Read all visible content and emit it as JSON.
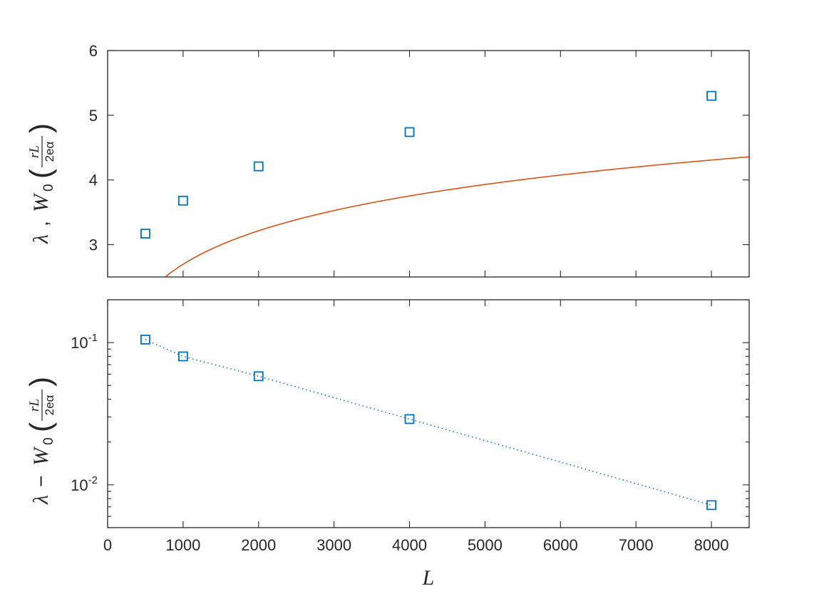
{
  "chart_data": [
    {
      "type": "line",
      "xlim": [
        0,
        8500
      ],
      "ylim": [
        2.5,
        6
      ],
      "y_scale": "linear",
      "grid": false,
      "xticks": [
        0,
        1000,
        2000,
        3000,
        4000,
        5000,
        6000,
        7000,
        8000
      ],
      "xtick_labels_shown": false,
      "yticks": [
        3,
        4,
        5,
        6
      ],
      "ytick_labels": [
        "3",
        "4",
        "5",
        "6"
      ],
      "ylabel": {
        "lambda": "λ",
        "sep": ",",
        "W": "W",
        "sub": "0",
        "num": "rL",
        "den": "2eα"
      },
      "markers": {
        "x": [
          500,
          1000,
          2000,
          4000,
          8000
        ],
        "y": [
          3.17,
          3.68,
          4.21,
          4.74,
          5.3
        ],
        "marker": "square",
        "color": "#0072BD"
      },
      "curve": {
        "function": "lambert_w0(r*L/(2*e*alpha))",
        "r_over_2e_alpha": 0.04,
        "color": "#D95319",
        "style": "solid"
      }
    },
    {
      "type": "line",
      "xlim": [
        0,
        8500
      ],
      "ylim": [
        0.005,
        0.2
      ],
      "y_scale": "log",
      "grid": false,
      "xticks": [
        0,
        1000,
        2000,
        3000,
        4000,
        5000,
        6000,
        7000,
        8000
      ],
      "xtick_labels": [
        "0",
        "1000",
        "2000",
        "3000",
        "4000",
        "5000",
        "6000",
        "7000",
        "8000"
      ],
      "xlabel": "L",
      "ytick_labels": [
        {
          "base": "10",
          "exp": "-1",
          "value": 0.1
        },
        {
          "base": "10",
          "exp": "-2",
          "value": 0.01
        }
      ],
      "ylabel": {
        "lambda": "λ",
        "minus": "−",
        "W": "W",
        "sub": "0",
        "num": "rL",
        "den": "2eα"
      },
      "series": [
        {
          "x": [
            500,
            1000,
            2000,
            4000,
            8000
          ],
          "y": [
            0.105,
            0.08,
            0.058,
            0.029,
            0.0072
          ],
          "marker": "square",
          "line_style": "dotted",
          "color": "#0072BD"
        }
      ]
    }
  ]
}
